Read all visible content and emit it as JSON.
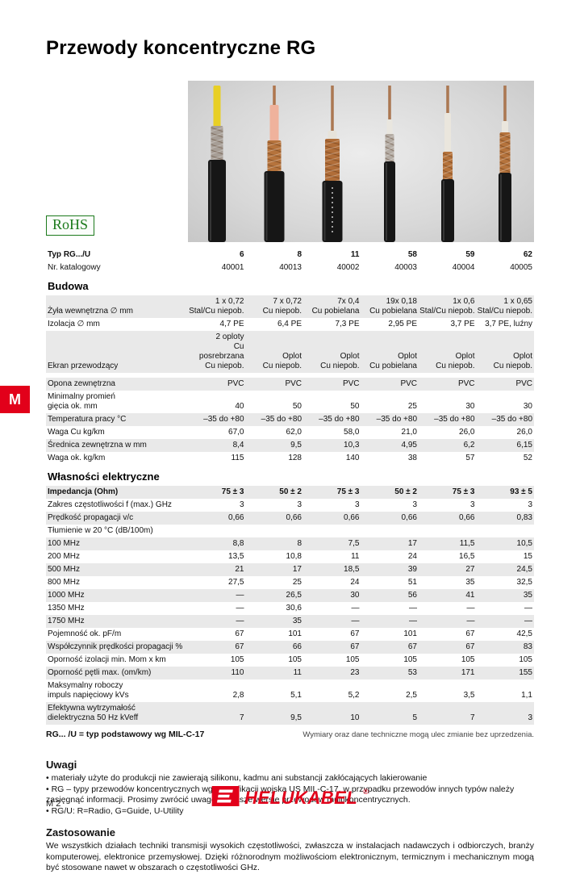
{
  "page": {
    "title": "Przewody koncentryczne RG",
    "rohs_label": "RoHS",
    "side_tab_label": "M",
    "page_number": "M 2",
    "brand_name": "HELUKABEL",
    "brand_mark": "®"
  },
  "colors": {
    "accent_red": "#e2001a",
    "row_shade": "#e9e9e9",
    "image_background": "#d8d8d8"
  },
  "illustration": {
    "cables": [
      {
        "type": "6",
        "wire_h": 0,
        "wire_color": "#9a5b2d",
        "core_h": 50,
        "core_w": 9,
        "core_color": "#e8cf25",
        "braid_h": 42,
        "braid_w": 15,
        "braid_color": "#a79e96",
        "jacket_w": 22,
        "marking": false
      },
      {
        "type": "8",
        "wire_h": 24,
        "wire_color": "#a05a28",
        "core_h": 44,
        "core_w": 11,
        "core_color": "#efb29c",
        "braid_h": 38,
        "braid_w": 17,
        "braid_color": "#b5733c",
        "jacket_w": 25,
        "marking": false
      },
      {
        "type": "11",
        "wire_h": 56,
        "wire_color": "#9a5b2d",
        "core_h": 10,
        "core_w": 11,
        "core_color": "#e7e3da",
        "braid_h": 52,
        "braid_w": 18,
        "braid_color": "#b06d38",
        "jacket_w": 25,
        "marking": true
      },
      {
        "type": "58",
        "wire_h": 42,
        "wire_color": "#9a5b2d",
        "core_h": 18,
        "core_w": 7,
        "core_color": "#e9e6df",
        "braid_h": 34,
        "braid_w": 11,
        "braid_color": "#b4aca4",
        "jacket_w": 14,
        "marking": false
      },
      {
        "type": "59",
        "wire_h": 34,
        "wire_color": "#9a5b2d",
        "core_h": 48,
        "core_w": 8,
        "core_color": "#eae6dd",
        "braid_h": 34,
        "braid_w": 12,
        "braid_color": "#b5733c",
        "jacket_w": 16,
        "marking": false
      },
      {
        "type": "62",
        "wire_h": 44,
        "wire_color": "#9a5b2d",
        "core_h": 14,
        "core_w": 8,
        "core_color": "#eae6dd",
        "braid_h": 50,
        "braid_w": 13,
        "braid_color": "#b5733c",
        "jacket_w": 16,
        "marking": false
      }
    ]
  },
  "table": {
    "header_rows": [
      {
        "label": "Typ RG.../U",
        "bold": true,
        "values": [
          "6",
          "8",
          "11",
          "58",
          "59",
          "62"
        ]
      },
      {
        "label": "Nr. katalogowy",
        "values": [
          "40001",
          "40013",
          "40002",
          "40003",
          "40004",
          "40005"
        ]
      }
    ],
    "sections": [
      {
        "title": "Budowa",
        "groups": [
          {
            "rows": [
              {
                "label": "Żyła wewnętrzna  ∅ mm",
                "values": [
                  "1 x 0,72\nStal/Cu niepob.",
                  "7 x 0,72\nCu niepob.",
                  "7x 0,4\nCu pobielana",
                  "19x 0,18\nCu pobielana",
                  "1x 0,6\nStal/Cu niepob.",
                  "1 x 0,65\nStal/Cu niepob."
                ]
              },
              {
                "label": "Izolacja ∅ mm",
                "values": [
                  "4,7 PE",
                  "6,4 PE",
                  "7,3 PE",
                  "2,95 PE",
                  "3,7 PE",
                  "3,7 PE, luźny"
                ]
              },
              {
                "label": "Ekran przewodzący",
                "values": [
                  "2 oploty\nCu posrebrzana\nCu niepob.",
                  "Oplot\nCu niepob.",
                  "Oplot\nCu niepob.",
                  "Oplot\nCu pobielana",
                  "Oplot\nCu niepob.",
                  "Oplot\nCu niepob."
                ]
              }
            ]
          },
          {
            "rows": [
              {
                "label": "Opona zewnętrzna",
                "values": [
                  "PVC",
                  "PVC",
                  "PVC",
                  "PVC",
                  "PVC",
                  "PVC"
                ]
              },
              {
                "label": "Minimalny promień\ngięcia ok. mm",
                "values": [
                  "40",
                  "50",
                  "50",
                  "25",
                  "30",
                  "30"
                ]
              },
              {
                "label": "Temperatura pracy °C",
                "values": [
                  "–35 do +80",
                  "–35 do +80",
                  "–35 do +80",
                  "–35 do +80",
                  "–35 do +80",
                  "–35 do +80"
                ]
              },
              {
                "label": "Waga Cu kg/km",
                "values": [
                  "67,0",
                  "62,0",
                  "58,0",
                  "21,0",
                  "26,0",
                  "26,0"
                ]
              },
              {
                "label": "Średnica zewnętrzna w mm",
                "values": [
                  "8,4",
                  "9,5",
                  "10,3",
                  "4,95",
                  "6,2",
                  "6,15"
                ]
              },
              {
                "label": "Waga ok. kg/km",
                "values": [
                  "115",
                  "128",
                  "140",
                  "38",
                  "57",
                  "52"
                ]
              }
            ]
          }
        ]
      },
      {
        "title": "Własności elektryczne",
        "groups": [
          {
            "rows": [
              {
                "label": "Impedancja (Ohm)",
                "bold": true,
                "values": [
                  "75 ± 3",
                  "50 ± 2",
                  "75 ± 3",
                  "50 ± 2",
                  "75 ± 3",
                  "93 ± 5"
                ]
              },
              {
                "label": "Zakres częstotliwości f (max.) GHz",
                "values": [
                  "3",
                  "3",
                  "3",
                  "3",
                  "3",
                  "3"
                ]
              },
              {
                "label": "Prędkość propagacji v/c",
                "values": [
                  "0,66",
                  "0,66",
                  "0,66",
                  "0,66",
                  "0,66",
                  "0,83"
                ]
              },
              {
                "label": "Tłumienie w 20 °C (dB/100m)",
                "values": [
                  "",
                  "",
                  "",
                  "",
                  "",
                  ""
                ]
              },
              {
                "label": "100 MHz",
                "values": [
                  "8,8",
                  "8",
                  "7,5",
                  "17",
                  "11,5",
                  "10,5"
                ]
              },
              {
                "label": "200 MHz",
                "values": [
                  "13,5",
                  "10,8",
                  "11",
                  "24",
                  "16,5",
                  "15"
                ]
              },
              {
                "label": "500 MHz",
                "values": [
                  "21",
                  "17",
                  "18,5",
                  "39",
                  "27",
                  "24,5"
                ]
              },
              {
                "label": "800 MHz",
                "values": [
                  "27,5",
                  "25",
                  "24",
                  "51",
                  "35",
                  "32,5"
                ]
              },
              {
                "label": "1000 MHz",
                "values": [
                  "—",
                  "26,5",
                  "30",
                  "56",
                  "41",
                  "35"
                ]
              },
              {
                "label": "1350 MHz",
                "values": [
                  "—",
                  "30,6",
                  "—",
                  "—",
                  "—",
                  "—"
                ]
              },
              {
                "label": "1750 MHz",
                "values": [
                  "—",
                  "35",
                  "—",
                  "—",
                  "—",
                  "—"
                ]
              },
              {
                "label": "Pojemność ok. pF/m",
                "values": [
                  "67",
                  "101",
                  "67",
                  "101",
                  "67",
                  "42,5"
                ]
              },
              {
                "label": "Współczynnik prędkości propagacji %",
                "values": [
                  "67",
                  "66",
                  "67",
                  "67",
                  "67",
                  "83"
                ]
              },
              {
                "label": "Oporność izolacji min. Mom x km",
                "values": [
                  "105",
                  "105",
                  "105",
                  "105",
                  "105",
                  "105"
                ]
              },
              {
                "label": "Oporność pętli max. (om/km)",
                "values": [
                  "110",
                  "11",
                  "23",
                  "53",
                  "171",
                  "155"
                ]
              },
              {
                "label": "Maksymalny roboczy\nimpuls napięciowy kVs",
                "values": [
                  "2,8",
                  "5,1",
                  "5,2",
                  "2,5",
                  "3,5",
                  "1,1"
                ]
              },
              {
                "label": "Efektywna wytrzymałość\ndielektryczna 50 Hz kVeff",
                "values": [
                  "7",
                  "9,5",
                  "10",
                  "5",
                  "7",
                  "3"
                ]
              }
            ]
          }
        ]
      }
    ],
    "footnote_left": "RG... /U = typ podstawowy wg MIL-C-17",
    "footnote_right": "Wymiary oraz dane techniczne mogą ulec zmianie bez uprzedzenia."
  },
  "notes": {
    "title": "Uwagi",
    "items": [
      "materiały użyte do produkcji nie zawierają silikonu, kadmu ani substancji zakłócających lakierowanie",
      "RG – typy przewodów koncentrycznych wg specyfikacji wojska US MIL-C-17, w przypadku przewodów innych typów należy zasięgnąć informacji. Prosimy zwrócić uwagę na nasze wersje przewodów multikoncentrycznych.",
      "RG/U: R=Radio, G=Guide, U-Utility"
    ]
  },
  "application": {
    "title": "Zastosowanie",
    "text": "We wszystkich działach techniki transmisji wysokich częstotliwości, zwłaszcza w instalacjach nadawczych i odbiorczych, branży komputerowej, elektronice przemysłowej. Dzięki różnorodnym możliwościom elektronicznym, termicznym i mechanicznym mogą być stosowane nawet w obszarach o częstotliwości GHz."
  }
}
